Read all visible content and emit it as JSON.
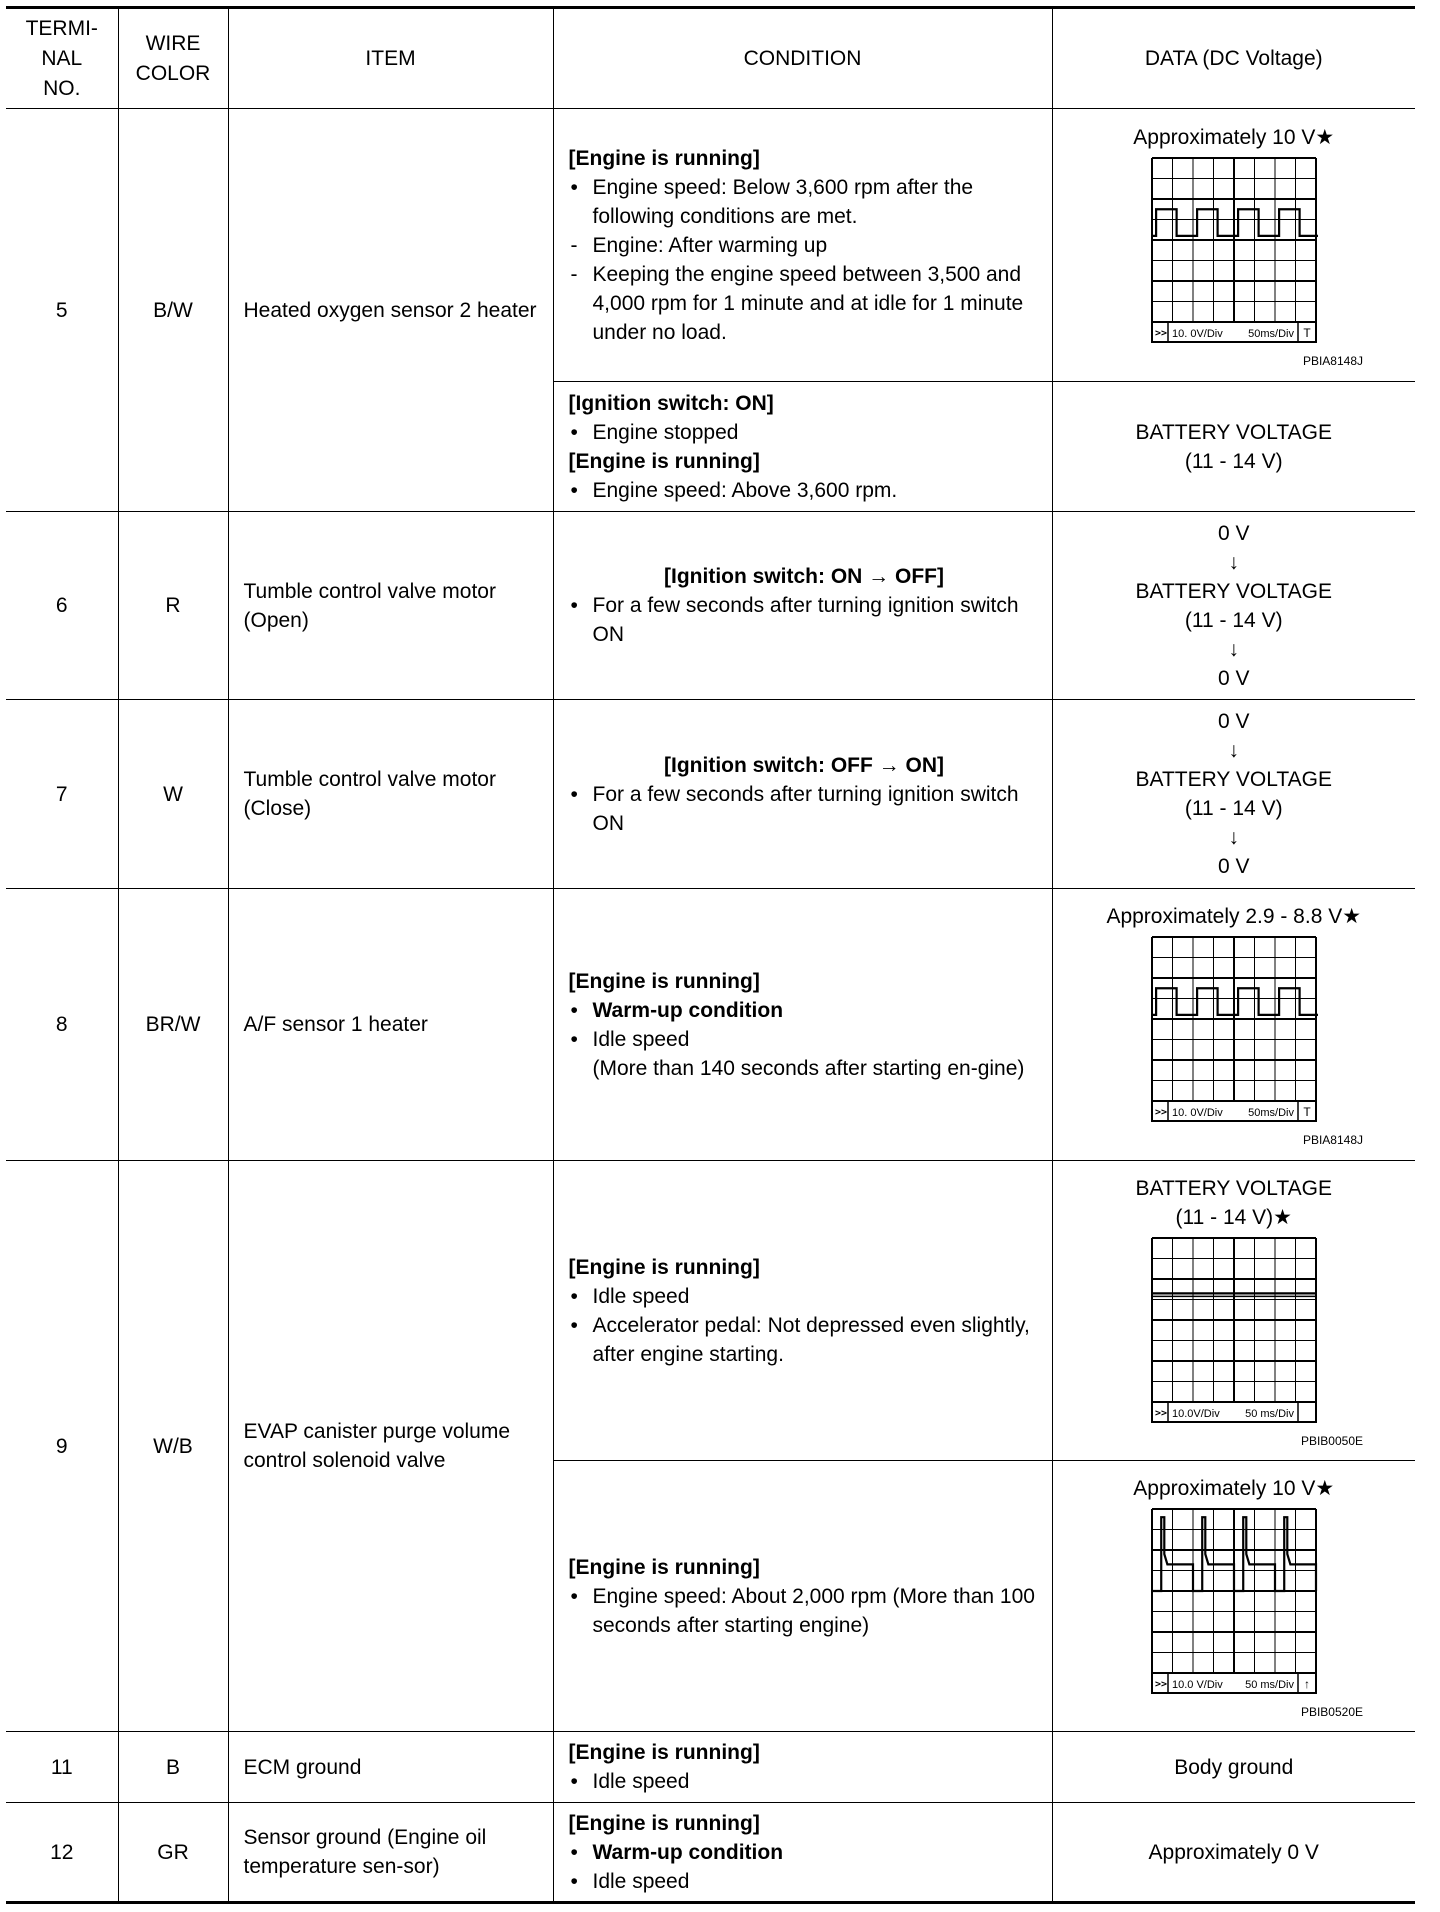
{
  "headers": {
    "terminal": "TERMI-\nNAL\nNO.",
    "wire": "WIRE\nCOLOR",
    "item": "ITEM",
    "condition": "CONDITION",
    "data": "DATA (DC Voltage)"
  },
  "rows": [
    {
      "terminal": "5",
      "wire": "B/W",
      "item": "Heated oxygen sensor 2 heater",
      "sub": [
        {
          "condition": [
            {
              "type": "heading",
              "text": "[Engine is running]"
            },
            {
              "type": "bullet",
              "text": "Engine speed: Below 3,600 rpm after the following conditions are met."
            },
            {
              "type": "dash",
              "text": "Engine: After warming up"
            },
            {
              "type": "dash",
              "text": "Keeping the engine speed between 3,500 and 4,000 rpm for 1 minute and at idle for 1 minute under no load."
            }
          ],
          "data": {
            "lines": [
              "Approximately 10 V★"
            ],
            "scope": {
              "waveform": "square",
              "volt_div": "10. 0V/Div",
              "time_div": "50ms/Div",
              "trigger": "T",
              "code": "PBIA8148J"
            }
          }
        },
        {
          "condition": [
            {
              "type": "heading",
              "text": "[Ignition switch: ON]"
            },
            {
              "type": "bullet",
              "text": "Engine stopped"
            },
            {
              "type": "heading",
              "text": "[Engine is running]"
            },
            {
              "type": "bullet",
              "text": "Engine speed: Above 3,600 rpm."
            }
          ],
          "data": {
            "lines": [
              "BATTERY VOLTAGE",
              "(11 - 14 V)"
            ]
          }
        }
      ]
    },
    {
      "terminal": "6",
      "wire": "R",
      "item": "Tumble control valve motor (Open)",
      "sub": [
        {
          "condition": [
            {
              "type": "heading-center",
              "text": "[Ignition switch: ON → OFF]"
            },
            {
              "type": "bullet",
              "text": "For a few seconds after turning ignition switch ON"
            }
          ],
          "data": {
            "lines": [
              "0 V",
              "↓",
              "BATTERY VOLTAGE",
              "(11 - 14 V)",
              "↓",
              "0 V"
            ]
          }
        }
      ]
    },
    {
      "terminal": "7",
      "wire": "W",
      "item": "Tumble control valve motor (Close)",
      "sub": [
        {
          "condition": [
            {
              "type": "heading-center",
              "text": "[Ignition switch: OFF → ON]"
            },
            {
              "type": "bullet",
              "text": "For a few seconds after turning ignition switch ON"
            }
          ],
          "data": {
            "lines": [
              "0 V",
              "↓",
              "BATTERY VOLTAGE",
              "(11 - 14 V)",
              "↓",
              "0 V"
            ]
          }
        }
      ]
    },
    {
      "terminal": "8",
      "wire": "BR/W",
      "item": "A/F sensor 1 heater",
      "sub": [
        {
          "condition": [
            {
              "type": "heading",
              "text": "[Engine is running]"
            },
            {
              "type": "bullet-bold",
              "text": "Warm-up condition"
            },
            {
              "type": "bullet",
              "text": "Idle speed"
            },
            {
              "type": "cont",
              "text": "(More than 140 seconds after starting en-gine)"
            }
          ],
          "data": {
            "lines": [
              "Approximately 2.9 - 8.8 V★"
            ],
            "scope": {
              "waveform": "square",
              "volt_div": "10. 0V/Div",
              "time_div": "50ms/Div",
              "trigger": "T",
              "code": "PBIA8148J"
            }
          }
        }
      ]
    },
    {
      "terminal": "9",
      "wire": "W/B",
      "item": "EVAP canister purge volume control solenoid valve",
      "sub": [
        {
          "condition": [
            {
              "type": "heading",
              "text": "[Engine is running]"
            },
            {
              "type": "bullet",
              "text": "Idle speed"
            },
            {
              "type": "bullet",
              "text": "Accelerator pedal: Not depressed even slightly, after engine starting."
            }
          ],
          "data": {
            "lines": [
              "BATTERY VOLTAGE",
              "(11 - 14 V)★"
            ],
            "scope": {
              "waveform": "flat",
              "volt_div": "10.0V/Div",
              "time_div": "50 ms/Div",
              "trigger": "",
              "code": "PBIB0050E"
            }
          }
        },
        {
          "condition": [
            {
              "type": "heading",
              "text": "[Engine is running]"
            },
            {
              "type": "bullet",
              "text": "Engine speed: About 2,000 rpm (More than 100 seconds after starting engine)"
            }
          ],
          "data": {
            "lines": [
              "Approximately 10 V★"
            ],
            "scope": {
              "waveform": "spike",
              "volt_div": "10.0 V/Div",
              "time_div": "50 ms/Div",
              "trigger": "↑",
              "code": "PBIB0520E"
            }
          }
        }
      ]
    },
    {
      "terminal": "11",
      "wire": "B",
      "item": "ECM ground",
      "sub": [
        {
          "condition": [
            {
              "type": "heading",
              "text": "[Engine is running]"
            },
            {
              "type": "bullet",
              "text": "Idle speed"
            }
          ],
          "data": {
            "lines": [
              "Body ground"
            ]
          }
        }
      ]
    },
    {
      "terminal": "12",
      "wire": "GR",
      "item": "Sensor ground (Engine oil temperature sen-sor)",
      "sub": [
        {
          "condition": [
            {
              "type": "heading",
              "text": "[Engine is running]"
            },
            {
              "type": "bullet-bold",
              "text": "Warm-up condition"
            },
            {
              "type": "bullet",
              "text": "Idle speed"
            }
          ],
          "data": {
            "lines": [
              "Approximately 0 V"
            ]
          }
        }
      ]
    }
  ]
}
